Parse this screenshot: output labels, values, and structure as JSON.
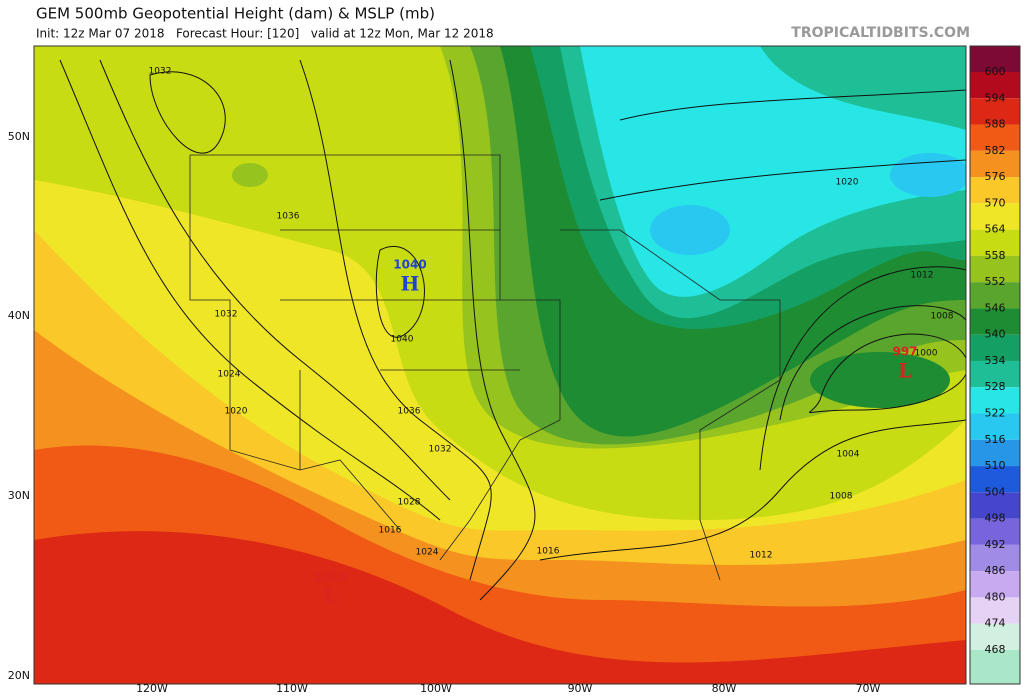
{
  "header": {
    "title": "GEM 500mb Geopotential Height (dam) & MSLP (mb)",
    "subtitle": "Init: 12z Mar 07 2018   Forecast Hour: [120]   valid at 12z Mon, Mar 12 2018",
    "site": "TROPICALTIDBITS.COM"
  },
  "colorbar": {
    "labels": [
      600,
      594,
      588,
      582,
      576,
      570,
      564,
      558,
      552,
      546,
      540,
      534,
      528,
      522,
      516,
      510,
      504,
      498,
      492,
      486,
      480,
      474,
      468
    ],
    "colors": [
      "#7d0a35",
      "#b40a1e",
      "#dc2814",
      "#f05a14",
      "#f5911e",
      "#fac828",
      "#f0e628",
      "#c8dc14",
      "#96c31e",
      "#5aa52d",
      "#1e8c32",
      "#14a064",
      "#1ebe96",
      "#28e6e6",
      "#28c8f0",
      "#2896e6",
      "#1e5adc",
      "#4646cd",
      "#7864dc",
      "#a08ce6",
      "#c8aaf0",
      "#e6d2f5",
      "#d2f0e1",
      "#aae6c8"
    ]
  },
  "latitude_labels": [
    "50N",
    "40N",
    "30N",
    "20N"
  ],
  "longitude_labels": [
    "120W",
    "110W",
    "100W",
    "90W",
    "80W",
    "70W"
  ],
  "isobar_labels": [
    "1032",
    "1036",
    "1032",
    "1024",
    "1020",
    "1040",
    "1036",
    "1032",
    "1028",
    "1016",
    "1024",
    "1016",
    "1012",
    "1008",
    "1004",
    "1000",
    "1008",
    "1012",
    "1020"
  ],
  "pressure_centers": [
    {
      "value": "1040",
      "symbol": "H"
    },
    {
      "value": "997",
      "symbol": "L"
    },
    {
      "value": "1010",
      "symbol": "L"
    }
  ]
}
